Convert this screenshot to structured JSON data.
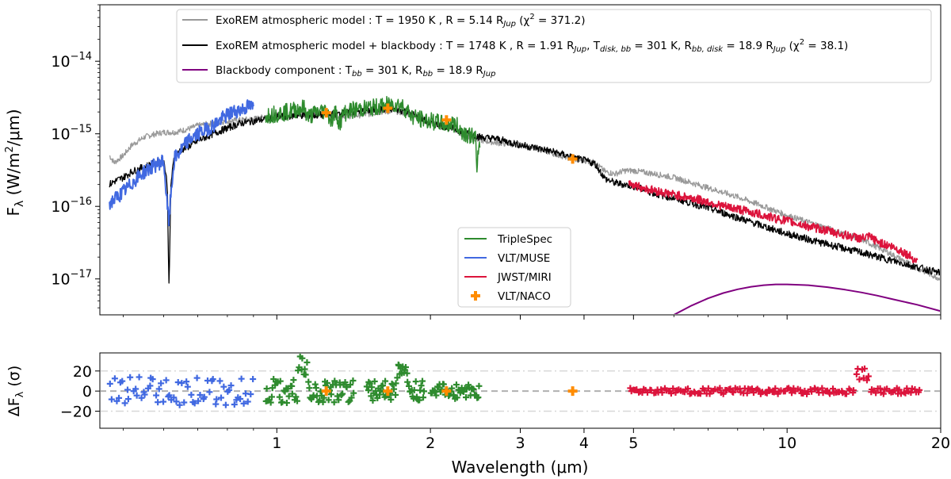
{
  "chart_data": [
    {
      "type": "line",
      "panel": "spectrum",
      "xscale": "log",
      "yscale": "log",
      "xlim": [
        0.45,
        20
      ],
      "ylim": [
        3.2e-18,
        6e-14
      ],
      "xlabel": "Wavelength (μm)",
      "ylabel": "F_λ (W/m²/μm)",
      "ylabel_main": "F",
      "ylabel_sub": "λ",
      "ylabel_units": " (W/m",
      "ylabel_units_sup": "2",
      "ylabel_units_end": "/μm)",
      "yticks": [
        {
          "value": 1e-14,
          "base": "10",
          "exp": "−14"
        },
        {
          "value": 1e-15,
          "base": "10",
          "exp": "−15"
        },
        {
          "value": 1e-16,
          "base": "10",
          "exp": "−16"
        },
        {
          "value": 1e-17,
          "base": "10",
          "exp": "−17"
        }
      ],
      "legend_top": [
        {
          "name": "ExoREM atmospheric model : T = 1950 K , R = 5.14 R_Jup (χ² = 371.2)",
          "color": "#999999",
          "label_parts": [
            "ExoREM atmospheric model : T = 1950 K , R = 5.14 R",
            "Jup",
            " (χ",
            "2",
            " = 371.2)"
          ]
        },
        {
          "name": "ExoREM atmospheric model + blackbody : T = 1748 K , R = 1.91 R_Jup, T_disk,bb = 301 K, R_bb,disk = 18.9 R_Jup (χ² = 38.1)",
          "color": "#000000",
          "label_parts": [
            "ExoREM atmospheric model + blackbody : T = 1748 K , R = 1.91 R",
            "Jup",
            ", T",
            "disk, bb",
            " = 301 K, R",
            "bb, disk",
            " = 18.9 R",
            "Jup",
            " (χ",
            "2",
            " = 38.1)"
          ]
        },
        {
          "name": "Blackbody component : T_bb = 301 K, R_bb = 18.9 R_Jup",
          "color": "#800080",
          "label_parts": [
            "Blackbody component : T",
            "bb",
            " = 301 K, R",
            "bb",
            " = 18.9 R",
            "Jup"
          ]
        }
      ],
      "legend_bottom": [
        {
          "name": "TripleSpec",
          "color": "#2e8b2e",
          "marker": "line"
        },
        {
          "name": "VLT/MUSE",
          "color": "#4169e1",
          "marker": "line"
        },
        {
          "name": "JWST/MIRI",
          "color": "#dc143c",
          "marker": "line"
        },
        {
          "name": "VLT/NACO",
          "color": "#ff8c00",
          "marker": "plus"
        }
      ],
      "series": [
        {
          "name": "ExoREM atmospheric model",
          "color": "#999999",
          "x": [
            0.47,
            0.48,
            0.5,
            0.52,
            0.55,
            0.58,
            0.6,
            0.63,
            0.65,
            0.68,
            0.7,
            0.75,
            0.8,
            0.85,
            0.9,
            0.95,
            1.0,
            1.05,
            1.1,
            1.2,
            1.25,
            1.3,
            1.4,
            1.5,
            1.6,
            1.7,
            1.8,
            1.9,
            2.0,
            2.1,
            2.2,
            2.3,
            2.4,
            2.5,
            2.7,
            3.0,
            3.3,
            3.6,
            3.8,
            4.0,
            4.2,
            4.4,
            4.6,
            4.8,
            5.0,
            5.5,
            6,
            7,
            8,
            9,
            10,
            12,
            14,
            16,
            18,
            20
          ],
          "y": [
            5e-16,
            4e-16,
            5e-16,
            7e-16,
            9e-16,
            1e-15,
            1.05e-15,
            1.05e-15,
            1.1e-15,
            1.2e-15,
            1.3e-15,
            1.4e-15,
            1.5e-15,
            1.55e-15,
            1.6e-15,
            1.7e-15,
            1.8e-15,
            1.8e-15,
            1.85e-15,
            1.9e-15,
            1.85e-15,
            1.8e-15,
            1.75e-15,
            1.85e-15,
            2e-15,
            2.05e-15,
            1.9e-15,
            1.6e-15,
            1.4e-15,
            1.3e-15,
            1.2e-15,
            1e-15,
            9e-16,
            8.2e-16,
            7.5e-16,
            7e-16,
            6e-16,
            5e-16,
            4.5e-16,
            4.3e-16,
            4e-16,
            3e-16,
            2.8e-16,
            3.1e-16,
            3.1e-16,
            2.8e-16,
            2.5e-16,
            1.8e-16,
            1.35e-16,
            1e-16,
            7.5e-17,
            5e-17,
            3.5e-17,
            2.2e-17,
            1.4e-17,
            1e-17
          ]
        },
        {
          "name": "ExoREM atmospheric model + blackbody",
          "color": "#000000",
          "x": [
            0.47,
            0.48,
            0.5,
            0.52,
            0.55,
            0.58,
            0.6,
            0.61,
            0.615,
            0.62,
            0.63,
            0.65,
            0.68,
            0.7,
            0.75,
            0.8,
            0.85,
            0.9,
            0.95,
            1.0,
            1.1,
            1.2,
            1.3,
            1.4,
            1.5,
            1.6,
            1.7,
            1.8,
            1.9,
            2.0,
            2.1,
            2.2,
            2.3,
            2.4,
            2.5,
            2.7,
            3.0,
            3.3,
            3.6,
            3.8,
            4.0,
            4.2,
            4.4,
            4.6,
            4.8,
            5.0,
            5.5,
            6,
            7,
            8,
            9,
            10,
            12,
            14,
            16,
            18,
            20
          ],
          "y": [
            2e-16,
            2.2e-16,
            2.5e-16,
            3e-16,
            3.5e-16,
            4e-16,
            4.5e-16,
            2e-16,
            7e-18,
            2e-16,
            5e-16,
            6e-16,
            7e-16,
            8e-16,
            1e-15,
            1.2e-15,
            1.4e-15,
            1.5e-15,
            1.6e-15,
            1.7e-15,
            1.8e-15,
            1.8e-15,
            1.85e-15,
            2e-15,
            2.1e-15,
            2.15e-15,
            2.2e-15,
            2e-15,
            1.7e-15,
            1.4e-15,
            1.3e-15,
            1.2e-15,
            1.1e-15,
            1e-15,
            9e-16,
            8.5e-16,
            7e-16,
            6.2e-16,
            5.3e-16,
            4.7e-16,
            4.3e-16,
            3.9e-16,
            2.4e-16,
            2.1e-16,
            2e-16,
            1.9e-16,
            1.5e-16,
            1.3e-16,
            9.5e-17,
            7e-17,
            5.3e-17,
            4.2e-17,
            3e-17,
            2.3e-17,
            1.8e-17,
            1.45e-17,
            1.2e-17
          ]
        },
        {
          "name": "Blackbody component",
          "color": "#800080",
          "x": [
            6.0,
            6.5,
            7.0,
            7.5,
            8.0,
            8.5,
            9.0,
            9.5,
            10.0,
            11,
            12,
            13,
            14,
            15,
            16,
            18,
            20
          ],
          "y": [
            3.2e-18,
            4.3e-18,
            5.4e-18,
            6.4e-18,
            7.2e-18,
            7.8e-18,
            8.2e-18,
            8.4e-18,
            8.4e-18,
            8.2e-18,
            7.7e-18,
            7.1e-18,
            6.5e-18,
            5.9e-18,
            5.3e-18,
            4.4e-18,
            3.6e-18
          ]
        },
        {
          "name": "VLT/MUSE",
          "color": "#4169e1",
          "x": [
            0.47,
            0.49,
            0.51,
            0.53,
            0.55,
            0.57,
            0.59,
            0.6,
            0.61,
            0.615,
            0.62,
            0.63,
            0.65,
            0.67,
            0.7,
            0.72,
            0.75,
            0.78,
            0.8,
            0.82,
            0.84,
            0.86,
            0.88,
            0.9
          ],
          "y": [
            1.1e-16,
            1.4e-16,
            1.8e-16,
            2.4e-16,
            3e-16,
            3.5e-16,
            4e-16,
            4.3e-16,
            1e-16,
            6e-17,
            1.5e-16,
            4.5e-16,
            6e-16,
            8e-16,
            1e-15,
            1.1e-15,
            1.3e-15,
            1.6e-15,
            1.8e-15,
            2e-15,
            2.1e-15,
            2.2e-15,
            2.4e-15,
            2.3e-15
          ]
        },
        {
          "name": "TripleSpec",
          "color": "#2e8b2e",
          "x": [
            0.95,
            1.0,
            1.05,
            1.1,
            1.13,
            1.15,
            1.2,
            1.25,
            1.28,
            1.3,
            1.33,
            1.35,
            1.4,
            1.45,
            1.5,
            1.55,
            1.6,
            1.65,
            1.7,
            1.75,
            1.8,
            1.85,
            1.9,
            1.95,
            2.0,
            2.05,
            2.1,
            2.15,
            2.2,
            2.25,
            2.3,
            2.35,
            2.4,
            2.45,
            2.47,
            2.48,
            2.5
          ],
          "y": [
            1.8e-15,
            1.9e-15,
            2e-15,
            2.2e-15,
            2.3e-15,
            1.7e-15,
            2e-15,
            2.1e-15,
            1.5e-15,
            2e-15,
            1.4e-15,
            1.9e-15,
            2.1e-15,
            2.2e-15,
            2.25e-15,
            2.3e-15,
            2.4e-15,
            2.5e-15,
            2.6e-15,
            2.5e-15,
            2.1e-15,
            1.7e-15,
            1.6e-15,
            1.55e-15,
            1.5e-15,
            1.45e-15,
            1.4e-15,
            1.3e-15,
            1.4e-15,
            1.3e-15,
            1.1e-15,
            1e-15,
            9.5e-16,
            9e-16,
            2.3e-16,
            6e-16,
            8e-16
          ]
        },
        {
          "name": "JWST/MIRI",
          "color": "#dc143c",
          "x": [
            4.9,
            5.2,
            5.5,
            6.0,
            6.5,
            7.0,
            7.5,
            8.0,
            8.5,
            9.0,
            9.5,
            10,
            11,
            12,
            13,
            14,
            14.5,
            15,
            15.5,
            16,
            17,
            18
          ],
          "y": [
            2.1e-16,
            1.8e-16,
            1.65e-16,
            1.45e-16,
            1.3e-16,
            1.15e-16,
            1e-16,
            9.2e-17,
            8.3e-17,
            7.5e-17,
            6.8e-17,
            6.3e-17,
            5.3e-17,
            4.6e-17,
            4e-17,
            3.6e-17,
            3.8e-17,
            3.3e-17,
            3e-17,
            2.8e-17,
            2.3e-17,
            1.75e-17
          ]
        }
      ],
      "naco_points": [
        {
          "x": 1.25,
          "y": 1.95e-15
        },
        {
          "x": 1.65,
          "y": 2.25e-15
        },
        {
          "x": 2.15,
          "y": 1.55e-15
        },
        {
          "x": 3.8,
          "y": 4.5e-16
        }
      ]
    },
    {
      "type": "scatter",
      "panel": "residuals",
      "xscale": "log",
      "xlim": [
        0.45,
        20
      ],
      "ylim": [
        -37,
        38
      ],
      "xlabel": "Wavelength (μm)",
      "ylabel": "ΔF_λ (σ)",
      "ylabel_main": "ΔF",
      "ylabel_sub": "λ",
      "ylabel_units": " (σ)",
      "yticks": [
        {
          "value": 20,
          "label": "20"
        },
        {
          "value": 0,
          "label": "0"
        },
        {
          "value": -20,
          "label": "−20"
        }
      ],
      "xticks": [
        {
          "value": 1,
          "label": "1"
        },
        {
          "value": 2,
          "label": "2"
        },
        {
          "value": 3,
          "label": "3"
        },
        {
          "value": 4,
          "label": "4"
        },
        {
          "value": 5,
          "label": "5"
        },
        {
          "value": 10,
          "label": "10"
        },
        {
          "value": 20,
          "label": "20"
        }
      ],
      "reference_lines": [
        0,
        20,
        -20
      ],
      "groups": [
        {
          "name": "VLT/MUSE",
          "color": "#4169e1",
          "range": [
            0.47,
            0.9
          ],
          "spread": 14,
          "count": 70
        },
        {
          "name": "TripleSpec",
          "color": "#2e8b2e",
          "range": [
            0.95,
            1.42
          ],
          "spread": 12,
          "count": 80
        },
        {
          "name": "TripleSpec",
          "color": "#2e8b2e",
          "range": [
            1.5,
            1.95
          ],
          "spread": 10,
          "count": 60
        },
        {
          "name": "TripleSpec",
          "color": "#2e8b2e",
          "range": [
            2.0,
            2.5
          ],
          "spread": 8,
          "count": 45
        },
        {
          "name": "JWST/MIRI",
          "color": "#dc143c",
          "range": [
            4.9,
            18.3
          ],
          "spread": 3,
          "count": 160
        }
      ],
      "naco_points": [
        {
          "x": 1.25,
          "y": 0
        },
        {
          "x": 1.65,
          "y": 0
        },
        {
          "x": 2.15,
          "y": 0
        },
        {
          "x": 3.8,
          "y": 0
        }
      ]
    }
  ]
}
